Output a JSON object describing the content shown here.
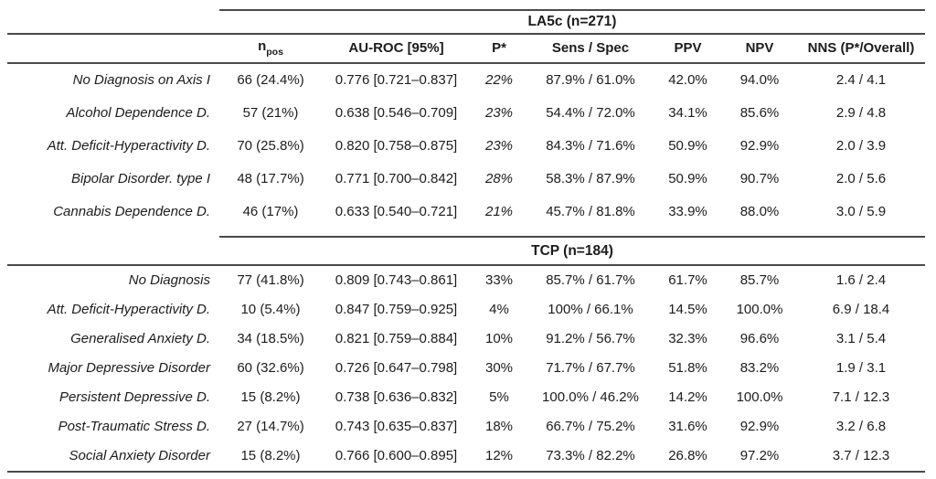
{
  "table": {
    "header": {
      "npos_main": "n",
      "npos_sub": "pos",
      "auroc": "AU-ROC [95%]",
      "p": "P*",
      "sens_spec": "Sens / Spec",
      "ppv": "PPV",
      "npv": "NPV",
      "nns": "NNS (P*/Overall)"
    },
    "sections": [
      {
        "title": "LA5c (n=271)",
        "p_italic": true,
        "rows": [
          {
            "label": "No Diagnosis on Axis I",
            "npos": "66 (24.4%)",
            "auroc": "0.776 [0.721–0.837]",
            "p": "22%",
            "sens_spec": "87.9% / 61.0%",
            "ppv": "42.0%",
            "npv": "94.0%",
            "nns": "2.4 / 4.1"
          },
          {
            "label": "Alcohol Dependence D.",
            "npos": "57 (21%)",
            "auroc": "0.638 [0.546–0.709]",
            "p": "23%",
            "sens_spec": "54.4% / 72.0%",
            "ppv": "34.1%",
            "npv": "85.6%",
            "nns": "2.9 / 4.8"
          },
          {
            "label": "Att. Deficit-Hyperactivity D.",
            "npos": "70 (25.8%)",
            "auroc": "0.820 [0.758–0.875]",
            "p": "23%",
            "sens_spec": "84.3% / 71.6%",
            "ppv": "50.9%",
            "npv": "92.9%",
            "nns": "2.0 / 3.9"
          },
          {
            "label": "Bipolar Disorder. type I",
            "npos": "48 (17.7%)",
            "auroc": "0.771 [0.700–0.842]",
            "p": "28%",
            "sens_spec": "58.3% / 87.9%",
            "ppv": "50.9%",
            "npv": "90.7%",
            "nns": "2.0 / 5.6"
          },
          {
            "label": "Cannabis Dependence D.",
            "npos": "46 (17%)",
            "auroc": "0.633 [0.540–0.721]",
            "p": "21%",
            "sens_spec": "45.7% / 81.8%",
            "ppv": "33.9%",
            "npv": "88.0%",
            "nns": "3.0 / 5.9"
          }
        ]
      },
      {
        "title": "TCP (n=184)",
        "p_italic": false,
        "rows": [
          {
            "label": "No Diagnosis",
            "npos": "77 (41.8%)",
            "auroc": "0.809 [0.743–0.861]",
            "p": "33%",
            "sens_spec": "85.7% / 61.7%",
            "ppv": "61.7%",
            "npv": "85.7%",
            "nns": "1.6 / 2.4"
          },
          {
            "label": "Att. Deficit-Hyperactivity D.",
            "npos": "10 (5.4%)",
            "auroc": "0.847 [0.759–0.925]",
            "p": "4%",
            "sens_spec": "100% / 66.1%",
            "ppv": "14.5%",
            "npv": "100.0%",
            "nns": "6.9 / 18.4"
          },
          {
            "label": "Generalised Anxiety D.",
            "npos": "34 (18.5%)",
            "auroc": "0.821 [0.759–0.884]",
            "p": "10%",
            "sens_spec": "91.2% / 56.7%",
            "ppv": "32.3%",
            "npv": "96.6%",
            "nns": "3.1 / 5.4"
          },
          {
            "label": "Major Depressive Disorder",
            "npos": "60 (32.6%)",
            "auroc": "0.726 [0.647–0.798]",
            "p": "30%",
            "sens_spec": "71.7% / 67.7%",
            "ppv": "51.8%",
            "npv": "83.2%",
            "nns": "1.9 / 3.1"
          },
          {
            "label": "Persistent Depressive D.",
            "npos": "15 (8.2%)",
            "auroc": "0.738 [0.636–0.832]",
            "p": "5%",
            "sens_spec": "100.0% / 46.2%",
            "ppv": "14.2%",
            "npv": "100.0%",
            "nns": "7.1 / 12.3"
          },
          {
            "label": "Post-Traumatic Stress D.",
            "npos": "27 (14.7%)",
            "auroc": "0.743 [0.635–0.837]",
            "p": "18%",
            "sens_spec": "66.7% / 75.2%",
            "ppv": "31.6%",
            "npv": "92.9%",
            "nns": "3.2 / 6.8"
          },
          {
            "label": "Social Anxiety Disorder",
            "npos": "15 (8.2%)",
            "auroc": "0.766 [0.600–0.895]",
            "p": "12%",
            "sens_spec": "73.3% / 82.2%",
            "ppv": "26.8%",
            "npv": "97.2%",
            "nns": "3.7 / 12.3"
          }
        ]
      }
    ]
  }
}
